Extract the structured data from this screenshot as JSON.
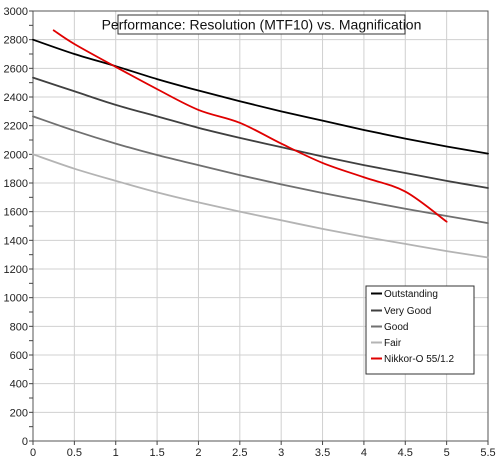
{
  "chart_data": {
    "type": "line",
    "title": "Performance: Resolution (MTF10) vs. Magnification",
    "xlabel": "",
    "ylabel": "",
    "xlim": [
      0,
      5.5
    ],
    "ylim": [
      0,
      3000
    ],
    "x_ticks": [
      0,
      0.5,
      1,
      1.5,
      2,
      2.5,
      3,
      3.5,
      4,
      4.5,
      5,
      5.5
    ],
    "x_tick_labels": [
      "0",
      "0.5",
      "1",
      "1.5",
      "2",
      "2.5",
      "3",
      "3.5",
      "4",
      "4.5",
      "5",
      "5.5"
    ],
    "y_ticks": [
      0,
      100,
      200,
      300,
      400,
      500,
      600,
      700,
      800,
      900,
      1000,
      1100,
      1200,
      1300,
      1400,
      1500,
      1600,
      1700,
      1800,
      1900,
      2000,
      2100,
      2200,
      2300,
      2400,
      2500,
      2600,
      2700,
      2800,
      2900,
      3000
    ],
    "y_tick_labels": [
      "0",
      "",
      "200",
      "",
      "400",
      "",
      "600",
      "",
      "800",
      "",
      "1000",
      "",
      "1200",
      "",
      "1400",
      "",
      "1600",
      "",
      "1800",
      "",
      "2000",
      "",
      "2200",
      "",
      "2400",
      "",
      "2600",
      "",
      "2800",
      "",
      "3000"
    ],
    "grid": true,
    "legend_position": "bottom-right",
    "series": [
      {
        "name": "Outstanding",
        "color": "#000000",
        "x": [
          0,
          0.5,
          1,
          1.5,
          2,
          2.5,
          3,
          3.5,
          4,
          4.5,
          5,
          5.5
        ],
        "y": [
          2800,
          2700,
          2615,
          2525,
          2445,
          2370,
          2300,
          2235,
          2170,
          2110,
          2055,
          2005
        ]
      },
      {
        "name": "Very Good",
        "color": "#404040",
        "x": [
          0,
          0.5,
          1,
          1.5,
          2,
          2.5,
          3,
          3.5,
          4,
          4.5,
          5,
          5.5
        ],
        "y": [
          2535,
          2440,
          2345,
          2265,
          2185,
          2115,
          2050,
          1985,
          1925,
          1870,
          1815,
          1765
        ]
      },
      {
        "name": "Good",
        "color": "#707070",
        "x": [
          0,
          0.5,
          1,
          1.5,
          2,
          2.5,
          3,
          3.5,
          4,
          4.5,
          5,
          5.5
        ],
        "y": [
          2265,
          2165,
          2075,
          1995,
          1925,
          1855,
          1790,
          1730,
          1675,
          1620,
          1570,
          1520
        ]
      },
      {
        "name": "Fair",
        "color": "#b4b4b4",
        "x": [
          0,
          0.5,
          1,
          1.5,
          2,
          2.5,
          3,
          3.5,
          4,
          4.5,
          5,
          5.5
        ],
        "y": [
          2000,
          1900,
          1815,
          1735,
          1665,
          1600,
          1540,
          1480,
          1425,
          1375,
          1325,
          1280
        ]
      },
      {
        "name": "Nikkor-O 55/1.2",
        "color": "#e00000",
        "x": [
          0.25,
          0.5,
          1,
          1.5,
          2,
          2.5,
          3,
          3.5,
          4,
          4.5,
          5
        ],
        "y": [
          2865,
          2770,
          2610,
          2455,
          2310,
          2220,
          2075,
          1940,
          1840,
          1740,
          1530
        ]
      }
    ]
  }
}
